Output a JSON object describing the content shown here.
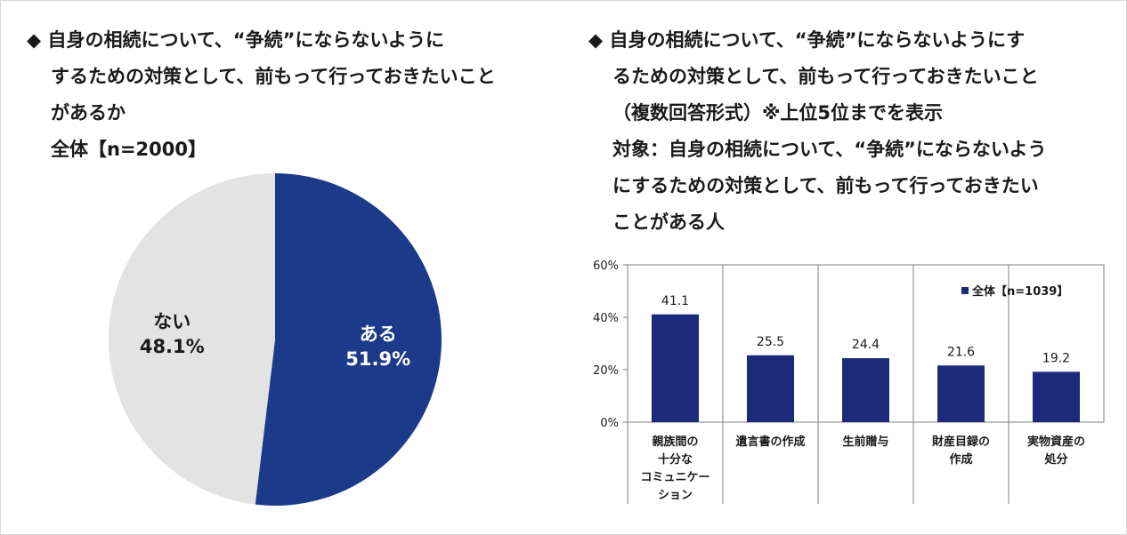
{
  "left": {
    "title_lines": [
      "◆ 自身の相続について、“争続”にならないように",
      "するための対策として、前もって行っておきたいこと",
      "があるか",
      "全体【n=2000】"
    ]
  },
  "right": {
    "title_lines": [
      "◆ 自身の相続について、“争続”にならないようにす",
      "るための対策として、前もって行っておきたいこと",
      "（複数回答形式）※上位5位までを表示",
      "対象：自身の相続について、“争続”にならないよう",
      "にするための対策として、前もって行っておきたい",
      "ことがある人"
    ]
  },
  "chart_data": [
    {
      "type": "pie",
      "slices": [
        {
          "label": "ある",
          "value": 51.9,
          "value_label": "51.9%",
          "color": "#1b3a8a"
        },
        {
          "label": "ない",
          "value": 48.1,
          "value_label": "48.1%",
          "color": "#e3e3e3"
        }
      ]
    },
    {
      "type": "bar",
      "categories": [
        [
          "親族間の",
          "十分な",
          "コミュニケー",
          "ション"
        ],
        [
          "遺言書の作成"
        ],
        [
          "生前贈与"
        ],
        [
          "財産目録の",
          "作成"
        ],
        [
          "実物資産の",
          "処分"
        ]
      ],
      "series": [
        {
          "name": "全体【n=1039】",
          "values": [
            41.1,
            25.5,
            24.4,
            21.6,
            19.2
          ],
          "color": "#1b2a7a"
        }
      ],
      "value_labels": [
        "41.1",
        "25.5",
        "24.4",
        "21.6",
        "19.2"
      ],
      "ylim": [
        0,
        60
      ],
      "yticks": [
        0,
        20,
        40,
        60
      ],
      "ytick_labels": [
        "0%",
        "20%",
        "40%",
        "60%"
      ],
      "grid": "vertical-separators",
      "legend_position": "top-right"
    }
  ]
}
